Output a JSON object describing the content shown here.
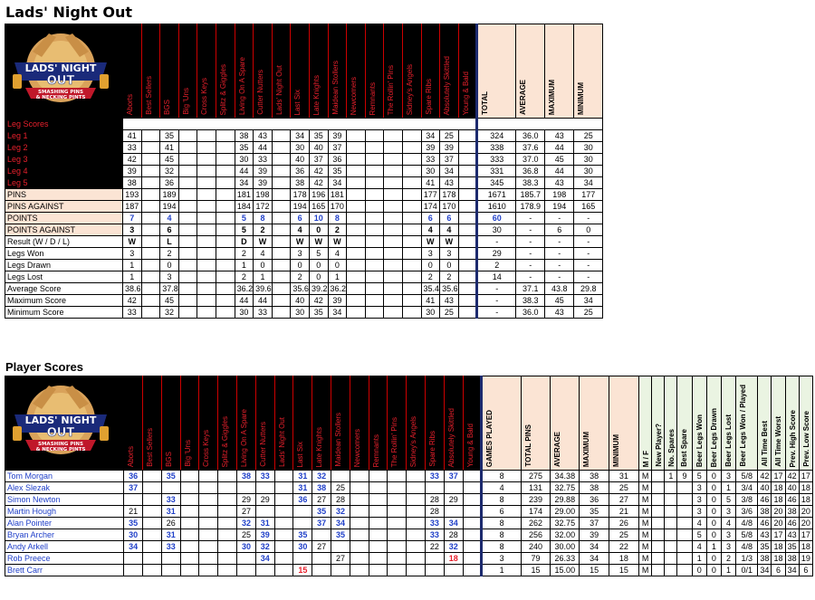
{
  "title": "Lads' Night Out",
  "player_section_title": "Player Scores",
  "logo": {
    "line1": "LADS' NIGHT",
    "line2": "OUT",
    "tag1": "SMASHING PINS",
    "tag2": "& NECKING PINTS"
  },
  "teams": [
    "Aborts",
    "Best Sellers",
    "BGS",
    "Big 'Uns",
    "Cross Keys",
    "Splitz & Giggles",
    "Living On A Spare",
    "Cutter Nutters",
    "Lads' Night Out",
    "Last Six",
    "Late Knights",
    "Maidean Stollers",
    "Newcomers",
    "Remnants",
    "The Rollin' Pins",
    "Sidney's Angels",
    "Spare Ribs",
    "Absolutely Skittled",
    "Young & Bald"
  ],
  "summary_headers": [
    "TOTAL",
    "AVERAGE",
    "MAXIMUM",
    "MINIMUM"
  ],
  "leg_scores_label": "Leg Scores",
  "team_rows": [
    {
      "label": "Leg 1",
      "style": "dark",
      "cells": [
        "41",
        "",
        "35",
        "",
        "",
        "",
        "38",
        "43",
        "",
        "34",
        "35",
        "39",
        "",
        "",
        "",
        "",
        "34",
        "25",
        ""
      ],
      "summary": [
        "324",
        "36.0",
        "43",
        "25"
      ]
    },
    {
      "label": "Leg 2",
      "style": "dark",
      "cells": [
        "33",
        "",
        "41",
        "",
        "",
        "",
        "35",
        "44",
        "",
        "30",
        "40",
        "37",
        "",
        "",
        "",
        "",
        "39",
        "39",
        ""
      ],
      "summary": [
        "338",
        "37.6",
        "44",
        "30"
      ]
    },
    {
      "label": "Leg 3",
      "style": "dark",
      "cells": [
        "42",
        "",
        "45",
        "",
        "",
        "",
        "30",
        "33",
        "",
        "40",
        "37",
        "36",
        "",
        "",
        "",
        "",
        "33",
        "37",
        ""
      ],
      "summary": [
        "333",
        "37.0",
        "45",
        "30"
      ]
    },
    {
      "label": "Leg 4",
      "style": "dark",
      "cells": [
        "39",
        "",
        "32",
        "",
        "",
        "",
        "44",
        "39",
        "",
        "36",
        "42",
        "35",
        "",
        "",
        "",
        "",
        "30",
        "34",
        ""
      ],
      "summary": [
        "331",
        "36.8",
        "44",
        "30"
      ]
    },
    {
      "label": "Leg 5",
      "style": "dark",
      "cells": [
        "38",
        "",
        "36",
        "",
        "",
        "",
        "34",
        "39",
        "",
        "38",
        "42",
        "34",
        "",
        "",
        "",
        "",
        "41",
        "43",
        ""
      ],
      "summary": [
        "345",
        "38.3",
        "43",
        "34"
      ]
    },
    {
      "label": "PINS",
      "style": "peach",
      "cells": [
        "193",
        "",
        "189",
        "",
        "",
        "",
        "181",
        "198",
        "",
        "178",
        "196",
        "181",
        "",
        "",
        "",
        "",
        "177",
        "178",
        ""
      ],
      "summary": [
        "1671",
        "185.7",
        "198",
        "177"
      ]
    },
    {
      "label": "PINS AGAINST",
      "style": "peach",
      "cells": [
        "187",
        "",
        "194",
        "",
        "",
        "",
        "184",
        "172",
        "",
        "194",
        "165",
        "170",
        "",
        "",
        "",
        "",
        "174",
        "170",
        ""
      ],
      "summary": [
        "1610",
        "178.9",
        "194",
        "165"
      ]
    },
    {
      "label": "POINTS",
      "style": "peach",
      "cls": "blue",
      "cells": [
        "7",
        "",
        "4",
        "",
        "",
        "",
        "5",
        "8",
        "",
        "6",
        "10",
        "8",
        "",
        "",
        "",
        "",
        "6",
        "6",
        ""
      ],
      "summary": [
        "60",
        "-",
        "-",
        "-"
      ],
      "sumcls": "blue"
    },
    {
      "label": "POINTS AGAINST",
      "style": "peach",
      "cls": "bold",
      "cells": [
        "3",
        "",
        "6",
        "",
        "",
        "",
        "5",
        "2",
        "",
        "4",
        "0",
        "2",
        "",
        "",
        "",
        "",
        "4",
        "4",
        ""
      ],
      "summary": [
        "30",
        "-",
        "6",
        "0"
      ]
    },
    {
      "label": "Result (W / D / L)",
      "style": "white",
      "cls": "bold",
      "cells": [
        "W",
        "",
        "L",
        "",
        "",
        "",
        "D",
        "W",
        "",
        "W",
        "W",
        "W",
        "",
        "",
        "",
        "",
        "W",
        "W",
        ""
      ],
      "summary": [
        "-",
        "-",
        "-",
        "-"
      ]
    },
    {
      "label": "Legs Won",
      "style": "white",
      "cells": [
        "3",
        "",
        "2",
        "",
        "",
        "",
        "2",
        "4",
        "",
        "3",
        "5",
        "4",
        "",
        "",
        "",
        "",
        "3",
        "3",
        ""
      ],
      "summary": [
        "29",
        "-",
        "-",
        "-"
      ]
    },
    {
      "label": "Legs Drawn",
      "style": "white",
      "cells": [
        "1",
        "",
        "0",
        "",
        "",
        "",
        "1",
        "0",
        "",
        "0",
        "0",
        "0",
        "",
        "",
        "",
        "",
        "0",
        "0",
        ""
      ],
      "summary": [
        "2",
        "-",
        "-",
        "-"
      ]
    },
    {
      "label": "Legs Lost",
      "style": "white",
      "cells": [
        "1",
        "",
        "3",
        "",
        "",
        "",
        "2",
        "1",
        "",
        "2",
        "0",
        "1",
        "",
        "",
        "",
        "",
        "2",
        "2",
        ""
      ],
      "summary": [
        "14",
        "-",
        "-",
        "-"
      ]
    },
    {
      "label": "Average Score",
      "style": "white",
      "cells": [
        "38.6",
        "",
        "37.8",
        "",
        "",
        "",
        "36.2",
        "39.6",
        "",
        "35.6",
        "39.2",
        "36.2",
        "",
        "",
        "",
        "",
        "35.4",
        "35.6",
        ""
      ],
      "summary": [
        "-",
        "37.1",
        "43.8",
        "29.8"
      ]
    },
    {
      "label": "Maximum Score",
      "style": "white",
      "cells": [
        "42",
        "",
        "45",
        "",
        "",
        "",
        "44",
        "44",
        "",
        "40",
        "42",
        "39",
        "",
        "",
        "",
        "",
        "41",
        "43",
        ""
      ],
      "summary": [
        "-",
        "38.3",
        "45",
        "34"
      ]
    },
    {
      "label": "Minimum Score",
      "style": "white",
      "cells": [
        "33",
        "",
        "32",
        "",
        "",
        "",
        "30",
        "33",
        "",
        "30",
        "35",
        "34",
        "",
        "",
        "",
        "",
        "30",
        "25",
        ""
      ],
      "summary": [
        "-",
        "36.0",
        "43",
        "25"
      ]
    }
  ],
  "player_summary_headers": [
    "GAMES PLAYED",
    "TOTAL PINS",
    "AVERAGE",
    "MAXIMUM",
    "MINIMUM"
  ],
  "player_extra_headers": [
    "M / F",
    "New Player?",
    "No. Spares",
    "Best Spare",
    "Beer Legs Won",
    "Beer Legs Drawn",
    "Beer Legs Lost",
    "Beer Legs Won / Played",
    "All Time Best",
    "All Time Worst",
    "Prev. High Score",
    "Prev. Low Score"
  ],
  "players": [
    {
      "name": "Tom Morgan",
      "cells": [
        [
          "36",
          "b"
        ],
        [
          "",
          ""
        ],
        [
          "35",
          "b"
        ],
        [
          "",
          ""
        ],
        [
          "",
          ""
        ],
        [
          "",
          ""
        ],
        [
          "38",
          "b"
        ],
        [
          "33",
          "b"
        ],
        [
          "",
          ""
        ],
        [
          "31",
          "b"
        ],
        [
          "32",
          "b"
        ],
        [
          "",
          ""
        ],
        [
          "",
          ""
        ],
        [
          "",
          ""
        ],
        [
          "",
          ""
        ],
        [
          "",
          ""
        ],
        [
          "33",
          "b"
        ],
        [
          "37",
          "b"
        ],
        [
          "",
          ""
        ]
      ],
      "summary": [
        "8",
        "275",
        "34.38",
        "38",
        "31"
      ],
      "extra": [
        "M",
        "",
        "1",
        "9",
        "5",
        "0",
        "3",
        "5/8",
        "42",
        "17",
        "42",
        "17"
      ]
    },
    {
      "name": "Alex Slezak",
      "cells": [
        [
          "37",
          "b"
        ],
        [
          "",
          ""
        ],
        [
          "",
          ""
        ],
        [
          "",
          ""
        ],
        [
          "",
          ""
        ],
        [
          "",
          ""
        ],
        [
          "",
          ""
        ],
        [
          "",
          ""
        ],
        [
          "",
          ""
        ],
        [
          "31",
          "b"
        ],
        [
          "38",
          "b"
        ],
        [
          "25",
          ""
        ],
        [
          "",
          ""
        ],
        [
          "",
          ""
        ],
        [
          "",
          ""
        ],
        [
          "",
          ""
        ],
        [
          "",
          ""
        ],
        [
          "",
          ""
        ],
        [
          "",
          ""
        ]
      ],
      "summary": [
        "4",
        "131",
        "32.75",
        "38",
        "25"
      ],
      "extra": [
        "M",
        "",
        "",
        "",
        "3",
        "0",
        "1",
        "3/4",
        "40",
        "18",
        "40",
        "18"
      ]
    },
    {
      "name": "Simon Newton",
      "cells": [
        [
          "",
          ""
        ],
        [
          "",
          ""
        ],
        [
          "33",
          "b"
        ],
        [
          "",
          ""
        ],
        [
          "",
          ""
        ],
        [
          "",
          ""
        ],
        [
          "29",
          ""
        ],
        [
          "29",
          ""
        ],
        [
          "",
          ""
        ],
        [
          "36",
          "b"
        ],
        [
          "27",
          ""
        ],
        [
          "28",
          ""
        ],
        [
          "",
          ""
        ],
        [
          "",
          ""
        ],
        [
          "",
          ""
        ],
        [
          "",
          ""
        ],
        [
          "28",
          ""
        ],
        [
          "29",
          ""
        ],
        [
          "",
          ""
        ]
      ],
      "summary": [
        "8",
        "239",
        "29.88",
        "36",
        "27"
      ],
      "extra": [
        "M",
        "",
        "",
        "",
        "3",
        "0",
        "5",
        "3/8",
        "46",
        "18",
        "46",
        "18"
      ]
    },
    {
      "name": "Martin Hough",
      "cells": [
        [
          "21",
          ""
        ],
        [
          "",
          ""
        ],
        [
          "31",
          "b"
        ],
        [
          "",
          ""
        ],
        [
          "",
          ""
        ],
        [
          "",
          ""
        ],
        [
          "27",
          ""
        ],
        [
          "",
          ""
        ],
        [
          "",
          ""
        ],
        [
          "",
          ""
        ],
        [
          "35",
          "b"
        ],
        [
          "32",
          "b"
        ],
        [
          "",
          ""
        ],
        [
          "",
          ""
        ],
        [
          "",
          ""
        ],
        [
          "",
          ""
        ],
        [
          "28",
          ""
        ],
        [
          "",
          ""
        ],
        [
          "",
          ""
        ]
      ],
      "summary": [
        "6",
        "174",
        "29.00",
        "35",
        "21"
      ],
      "extra": [
        "M",
        "",
        "",
        "",
        "3",
        "0",
        "3",
        "3/6",
        "38",
        "20",
        "38",
        "20"
      ]
    },
    {
      "name": "Alan Pointer",
      "cells": [
        [
          "35",
          "b"
        ],
        [
          "",
          ""
        ],
        [
          "26",
          ""
        ],
        [
          "",
          ""
        ],
        [
          "",
          ""
        ],
        [
          "",
          ""
        ],
        [
          "32",
          "b"
        ],
        [
          "31",
          "b"
        ],
        [
          "",
          ""
        ],
        [
          "",
          ""
        ],
        [
          "37",
          "b"
        ],
        [
          "34",
          "b"
        ],
        [
          "",
          ""
        ],
        [
          "",
          ""
        ],
        [
          "",
          ""
        ],
        [
          "",
          ""
        ],
        [
          "33",
          "b"
        ],
        [
          "34",
          "b"
        ],
        [
          "",
          ""
        ]
      ],
      "summary": [
        "8",
        "262",
        "32.75",
        "37",
        "26"
      ],
      "extra": [
        "M",
        "",
        "",
        "",
        "4",
        "0",
        "4",
        "4/8",
        "46",
        "20",
        "46",
        "20"
      ]
    },
    {
      "name": "Bryan Archer",
      "cells": [
        [
          "30",
          "b"
        ],
        [
          "",
          ""
        ],
        [
          "31",
          "b"
        ],
        [
          "",
          ""
        ],
        [
          "",
          ""
        ],
        [
          "",
          ""
        ],
        [
          "25",
          ""
        ],
        [
          "39",
          "b"
        ],
        [
          "",
          ""
        ],
        [
          "35",
          "b"
        ],
        [
          "",
          ""
        ],
        [
          "35",
          "b"
        ],
        [
          "",
          ""
        ],
        [
          "",
          ""
        ],
        [
          "",
          ""
        ],
        [
          "",
          ""
        ],
        [
          "33",
          "b"
        ],
        [
          "28",
          ""
        ],
        [
          "",
          ""
        ]
      ],
      "summary": [
        "8",
        "256",
        "32.00",
        "39",
        "25"
      ],
      "extra": [
        "M",
        "",
        "",
        "",
        "5",
        "0",
        "3",
        "5/8",
        "43",
        "17",
        "43",
        "17"
      ]
    },
    {
      "name": "Andy Arkell",
      "cells": [
        [
          "34",
          "b"
        ],
        [
          "",
          ""
        ],
        [
          "33",
          "b"
        ],
        [
          "",
          ""
        ],
        [
          "",
          ""
        ],
        [
          "",
          ""
        ],
        [
          "30",
          "b"
        ],
        [
          "32",
          "b"
        ],
        [
          "",
          ""
        ],
        [
          "30",
          "b"
        ],
        [
          "27",
          ""
        ],
        [
          "",
          ""
        ],
        [
          "",
          ""
        ],
        [
          "",
          ""
        ],
        [
          "",
          ""
        ],
        [
          "",
          ""
        ],
        [
          "22",
          ""
        ],
        [
          "32",
          "b"
        ],
        [
          "",
          ""
        ]
      ],
      "summary": [
        "8",
        "240",
        "30.00",
        "34",
        "22"
      ],
      "extra": [
        "M",
        "",
        "",
        "",
        "4",
        "1",
        "3",
        "4/8",
        "35",
        "18",
        "35",
        "18"
      ]
    },
    {
      "name": "Rob Preece",
      "cells": [
        [
          "",
          ""
        ],
        [
          "",
          ""
        ],
        [
          "",
          ""
        ],
        [
          "",
          ""
        ],
        [
          "",
          ""
        ],
        [
          "",
          ""
        ],
        [
          "",
          ""
        ],
        [
          "34",
          "b"
        ],
        [
          "",
          ""
        ],
        [
          "",
          ""
        ],
        [
          "",
          ""
        ],
        [
          "27",
          ""
        ],
        [
          "",
          ""
        ],
        [
          "",
          ""
        ],
        [
          "",
          ""
        ],
        [
          "",
          ""
        ],
        [
          "",
          ""
        ],
        [
          "18",
          "r"
        ],
        [
          "",
          ""
        ]
      ],
      "summary": [
        "3",
        "79",
        "26.33",
        "34",
        "18"
      ],
      "extra": [
        "M",
        "",
        "",
        "",
        "1",
        "0",
        "2",
        "1/3",
        "38",
        "18",
        "38",
        "19"
      ]
    },
    {
      "name": "Brett Carr",
      "cells": [
        [
          "",
          ""
        ],
        [
          "",
          ""
        ],
        [
          "",
          ""
        ],
        [
          "",
          ""
        ],
        [
          "",
          ""
        ],
        [
          "",
          ""
        ],
        [
          "",
          ""
        ],
        [
          "",
          ""
        ],
        [
          "",
          ""
        ],
        [
          "15",
          "r"
        ],
        [
          "",
          ""
        ],
        [
          "",
          ""
        ],
        [
          "",
          ""
        ],
        [
          "",
          ""
        ],
        [
          "",
          ""
        ],
        [
          "",
          ""
        ],
        [
          "",
          ""
        ],
        [
          "",
          ""
        ],
        [
          "",
          ""
        ]
      ],
      "summary": [
        "1",
        "15",
        "15.00",
        "15",
        "15"
      ],
      "extra": [
        "M",
        "",
        "",
        "",
        "0",
        "0",
        "1",
        "0/1",
        "34",
        "6",
        "34",
        "6"
      ]
    }
  ],
  "colors": {
    "team_header_bg": "#000000",
    "team_header_text": "#e8202c",
    "peach": "#fbe4d4",
    "green": "#eaf4e2",
    "blue_value": "#1f3fc8",
    "red_value": "#e8202c",
    "divider": "#1c2a6e"
  }
}
